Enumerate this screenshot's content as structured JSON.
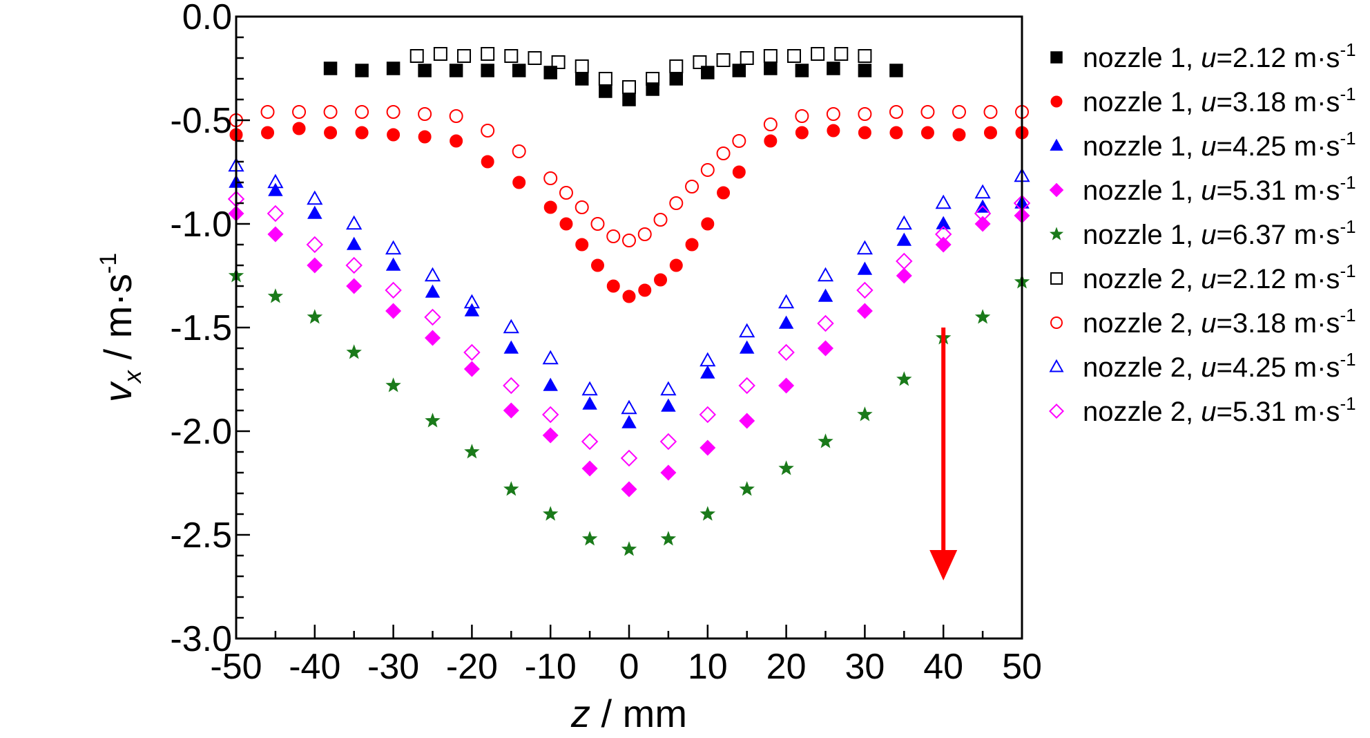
{
  "chart_data": {
    "type": "scatter",
    "title": "",
    "xlabel": {
      "var": "z",
      "unit": " / mm"
    },
    "ylabel": {
      "var": "v",
      "sub": "x",
      "unit": " / m·s",
      "sup": "-1"
    },
    "xlim": [
      -50,
      50
    ],
    "ylim": [
      -3.0,
      0.0
    ],
    "xticks": [
      -50,
      -40,
      -30,
      -20,
      -10,
      0,
      10,
      20,
      30,
      40,
      50
    ],
    "xtick_labels": [
      "-50",
      "-40",
      "-30",
      "-20",
      "-10",
      "0",
      "10",
      "20",
      "30",
      "40",
      "50"
    ],
    "yticks": [
      0.0,
      -0.5,
      -1.0,
      -1.5,
      -2.0,
      -2.5,
      -3.0
    ],
    "ytick_labels": [
      "0.0",
      "-0.5",
      "-1.0",
      "-1.5",
      "-2.0",
      "-2.5",
      "-3.0"
    ],
    "grid": false,
    "legend_position": "right outside",
    "annotation": {
      "type": "arrow",
      "color": "#ff0000",
      "x": 40,
      "from_y": -1.5,
      "to_y": -2.7
    },
    "series": [
      {
        "label_prefix": "nozzle 1, ",
        "label_var": "u",
        "label_value": "=2.12 m·s",
        "label_sup": "-1",
        "marker": "square",
        "filled": true,
        "color": "#000000",
        "x": [
          -38,
          -34,
          -30,
          -26,
          -22,
          -18,
          -14,
          -10,
          -6,
          -3,
          0,
          3,
          6,
          10,
          14,
          18,
          22,
          26,
          30,
          34
        ],
        "y": [
          -0.25,
          -0.26,
          -0.25,
          -0.26,
          -0.26,
          -0.26,
          -0.26,
          -0.27,
          -0.3,
          -0.36,
          -0.4,
          -0.35,
          -0.3,
          -0.27,
          -0.26,
          -0.25,
          -0.26,
          -0.25,
          -0.26,
          -0.26
        ]
      },
      {
        "label_prefix": "nozzle 1, ",
        "label_var": "u",
        "label_value": "=3.18 m·s",
        "label_sup": "-1",
        "marker": "circle",
        "filled": true,
        "color": "#ff0000",
        "x": [
          -50,
          -46,
          -42,
          -38,
          -34,
          -30,
          -26,
          -22,
          -18,
          -14,
          -10,
          -8,
          -6,
          -4,
          -2,
          0,
          2,
          4,
          6,
          8,
          10,
          12,
          14,
          18,
          22,
          26,
          30,
          34,
          38,
          42,
          46,
          50
        ],
        "y": [
          -0.57,
          -0.56,
          -0.54,
          -0.56,
          -0.56,
          -0.57,
          -0.58,
          -0.6,
          -0.7,
          -0.8,
          -0.92,
          -1.0,
          -1.1,
          -1.2,
          -1.3,
          -1.35,
          -1.32,
          -1.27,
          -1.2,
          -1.1,
          -1.0,
          -0.85,
          -0.75,
          -0.6,
          -0.56,
          -0.55,
          -0.56,
          -0.56,
          -0.56,
          -0.57,
          -0.56,
          -0.56
        ]
      },
      {
        "label_prefix": "nozzle 1, ",
        "label_var": "u",
        "label_value": "=4.25 m·s",
        "label_sup": "-1",
        "marker": "triangle",
        "filled": true,
        "color": "#0000ff",
        "x": [
          -50,
          -45,
          -40,
          -35,
          -30,
          -25,
          -20,
          -15,
          -10,
          -5,
          0,
          5,
          10,
          15,
          20,
          25,
          30,
          35,
          40,
          45,
          50
        ],
        "y": [
          -0.8,
          -0.84,
          -0.95,
          -1.1,
          -1.2,
          -1.33,
          -1.42,
          -1.6,
          -1.78,
          -1.87,
          -1.96,
          -1.88,
          -1.72,
          -1.6,
          -1.48,
          -1.35,
          -1.22,
          -1.08,
          -1.0,
          -0.92,
          -0.9
        ]
      },
      {
        "label_prefix": "nozzle 1, ",
        "label_var": "u",
        "label_value": "=5.31 m·s",
        "label_sup": "-1",
        "marker": "diamond",
        "filled": true,
        "color": "#ff00ff",
        "x": [
          -50,
          -45,
          -40,
          -35,
          -30,
          -25,
          -20,
          -15,
          -10,
          -5,
          0,
          5,
          10,
          15,
          20,
          25,
          30,
          35,
          40,
          45,
          50
        ],
        "y": [
          -0.95,
          -1.05,
          -1.2,
          -1.3,
          -1.42,
          -1.55,
          -1.7,
          -1.9,
          -2.02,
          -2.18,
          -2.28,
          -2.2,
          -2.08,
          -1.95,
          -1.78,
          -1.6,
          -1.42,
          -1.25,
          -1.1,
          -1.0,
          -0.96
        ]
      },
      {
        "label_prefix": "nozzle 1, ",
        "label_var": "u",
        "label_value": "=6.37 m·s",
        "label_sup": "-1",
        "marker": "star",
        "filled": true,
        "color": "#1a7a1a",
        "x": [
          -50,
          -45,
          -40,
          -35,
          -30,
          -25,
          -20,
          -15,
          -10,
          -5,
          0,
          5,
          10,
          15,
          20,
          25,
          30,
          35,
          40,
          45,
          50
        ],
        "y": [
          -1.25,
          -1.35,
          -1.45,
          -1.62,
          -1.78,
          -1.95,
          -2.1,
          -2.28,
          -2.4,
          -2.52,
          -2.57,
          -2.52,
          -2.4,
          -2.28,
          -2.18,
          -2.05,
          -1.92,
          -1.75,
          -1.55,
          -1.45,
          -1.28
        ]
      },
      {
        "label_prefix": "nozzle 2, ",
        "label_var": "u",
        "label_value": "=2.12 m·s",
        "label_sup": "-1",
        "marker": "square",
        "filled": false,
        "color": "#000000",
        "x": [
          -27,
          -24,
          -21,
          -18,
          -15,
          -12,
          -9,
          -6,
          -3,
          0,
          3,
          6,
          9,
          12,
          15,
          18,
          21,
          24,
          27,
          30
        ],
        "y": [
          -0.19,
          -0.18,
          -0.19,
          -0.18,
          -0.19,
          -0.2,
          -0.22,
          -0.24,
          -0.3,
          -0.34,
          -0.3,
          -0.24,
          -0.22,
          -0.21,
          -0.2,
          -0.19,
          -0.19,
          -0.18,
          -0.18,
          -0.19
        ]
      },
      {
        "label_prefix": "nozzle 2, ",
        "label_var": "u",
        "label_value": "=3.18 m·s",
        "label_sup": "-1",
        "marker": "circle",
        "filled": false,
        "color": "#ff0000",
        "x": [
          -50,
          -46,
          -42,
          -38,
          -34,
          -30,
          -26,
          -22,
          -18,
          -14,
          -10,
          -8,
          -6,
          -4,
          -2,
          0,
          2,
          4,
          6,
          8,
          10,
          12,
          14,
          18,
          22,
          26,
          30,
          34,
          38,
          42,
          46,
          50
        ],
        "y": [
          -0.5,
          -0.46,
          -0.46,
          -0.46,
          -0.46,
          -0.46,
          -0.47,
          -0.48,
          -0.55,
          -0.65,
          -0.78,
          -0.85,
          -0.92,
          -1.0,
          -1.06,
          -1.08,
          -1.05,
          -0.98,
          -0.9,
          -0.82,
          -0.74,
          -0.66,
          -0.6,
          -0.52,
          -0.48,
          -0.47,
          -0.47,
          -0.46,
          -0.46,
          -0.46,
          -0.46,
          -0.46
        ]
      },
      {
        "label_prefix": "nozzle 2, ",
        "label_var": "u",
        "label_value": "=4.25 m·s",
        "label_sup": "-1",
        "marker": "triangle",
        "filled": false,
        "color": "#0000ff",
        "x": [
          -50,
          -45,
          -40,
          -35,
          -30,
          -25,
          -20,
          -15,
          -10,
          -5,
          0,
          5,
          10,
          15,
          20,
          25,
          30,
          35,
          40,
          45,
          50
        ],
        "y": [
          -0.72,
          -0.8,
          -0.88,
          -1.0,
          -1.12,
          -1.25,
          -1.38,
          -1.5,
          -1.65,
          -1.8,
          -1.89,
          -1.8,
          -1.66,
          -1.52,
          -1.38,
          -1.25,
          -1.12,
          -1.0,
          -0.9,
          -0.85,
          -0.77
        ]
      },
      {
        "label_prefix": "nozzle 2, ",
        "label_var": "u",
        "label_value": "=5.31 m·s",
        "label_sup": "-1",
        "marker": "diamond",
        "filled": false,
        "color": "#ff00ff",
        "x": [
          -50,
          -45,
          -40,
          -35,
          -30,
          -25,
          -20,
          -15,
          -10,
          -5,
          0,
          5,
          10,
          15,
          20,
          25,
          30,
          35,
          40,
          45,
          50
        ],
        "y": [
          -0.88,
          -0.95,
          -1.1,
          -1.2,
          -1.32,
          -1.45,
          -1.62,
          -1.78,
          -1.92,
          -2.05,
          -2.13,
          -2.05,
          -1.92,
          -1.78,
          -1.62,
          -1.48,
          -1.32,
          -1.18,
          -1.05,
          -0.95,
          -0.9
        ]
      }
    ]
  }
}
